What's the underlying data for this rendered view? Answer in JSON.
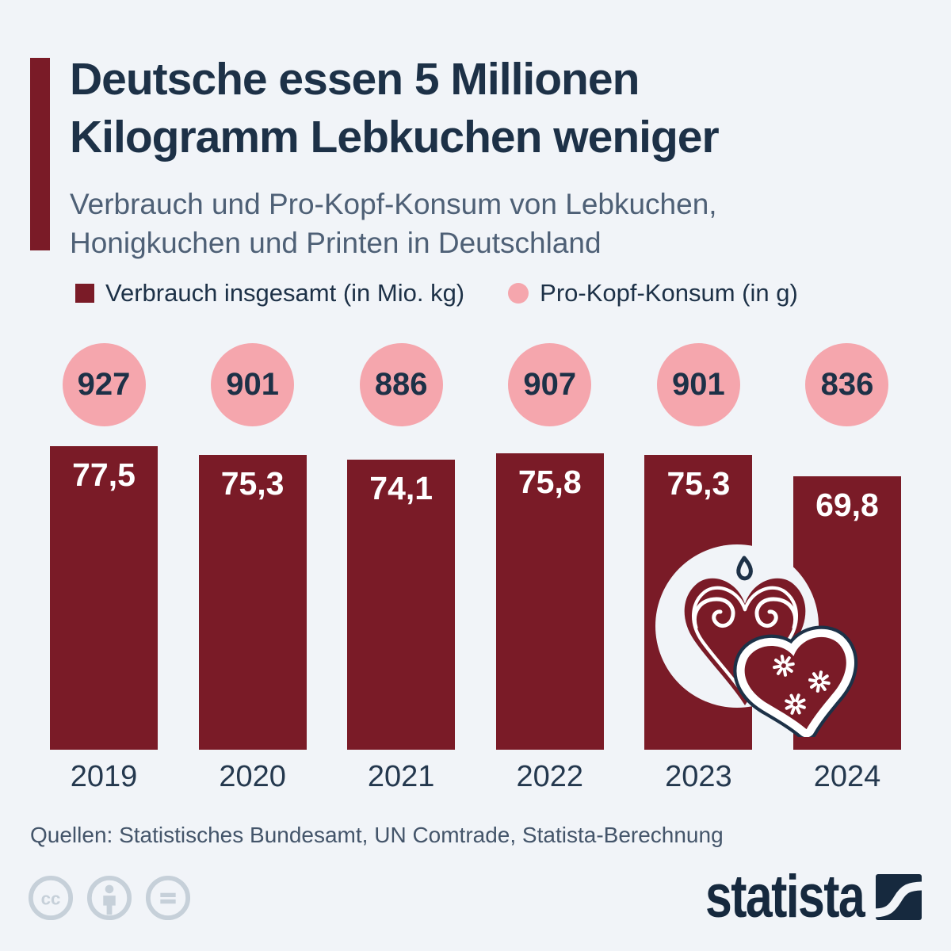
{
  "header": {
    "title_lines": [
      "Deutsche essen 5 Millionen",
      "Kilogramm Lebkuchen weniger"
    ],
    "subtitle_lines": [
      "Verbrauch und Pro-Kopf-Konsum von Lebkuchen,",
      "Honigkuchen und Printen in Deutschland"
    ]
  },
  "legend": {
    "items": [
      {
        "label": "Verbrauch insgesamt (in Mio. kg)",
        "swatch": "square",
        "color": "#7a1b27"
      },
      {
        "label": "Pro-Kopf-Konsum (in g)",
        "swatch": "circle",
        "color": "#f5a6ad"
      }
    ]
  },
  "chart_data": {
    "type": "bar",
    "title": "Deutsche essen 5 Millionen Kilogramm Lebkuchen weniger",
    "subtitle": "Verbrauch und Pro-Kopf-Konsum von Lebkuchen, Honigkuchen und Printen in Deutschland",
    "categories": [
      "2019",
      "2020",
      "2021",
      "2022",
      "2023",
      "2024"
    ],
    "series": [
      {
        "name": "Verbrauch insgesamt (in Mio. kg)",
        "type": "bar",
        "color": "#7a1b27",
        "values": [
          77.5,
          75.3,
          74.1,
          75.8,
          75.3,
          69.8
        ],
        "display_labels": [
          "77,5",
          "75,3",
          "74,1",
          "75,8",
          "75,3",
          "69,8"
        ]
      },
      {
        "name": "Pro-Kopf-Konsum (in g)",
        "type": "bubble",
        "color": "#f5a6ad",
        "values": [
          927,
          901,
          886,
          907,
          901,
          836
        ],
        "display_labels": [
          "927",
          "901",
          "886",
          "907",
          "901",
          "836"
        ]
      }
    ],
    "ylim": [
      0,
      80
    ],
    "grid": false,
    "legend_position": "top"
  },
  "footer": {
    "source": "Quellen: Statistisches Bundesamt, UN Comtrade, Statista-Berechnung",
    "license_icons": [
      "cc-icon",
      "attribution-icon",
      "equals-icon"
    ],
    "brand": "statista"
  },
  "illustration": {
    "name": "lebkuchen-hearts-illustration"
  },
  "colors": {
    "background": "#f1f4f8",
    "maroon": "#7a1b27",
    "pink": "#f5a6ad",
    "navy": "#1d3147",
    "subtitle": "#4e6076",
    "year": "#24384e",
    "source": "#44556a",
    "license": "#c6d0d9",
    "brand_navy": "#16293e"
  }
}
